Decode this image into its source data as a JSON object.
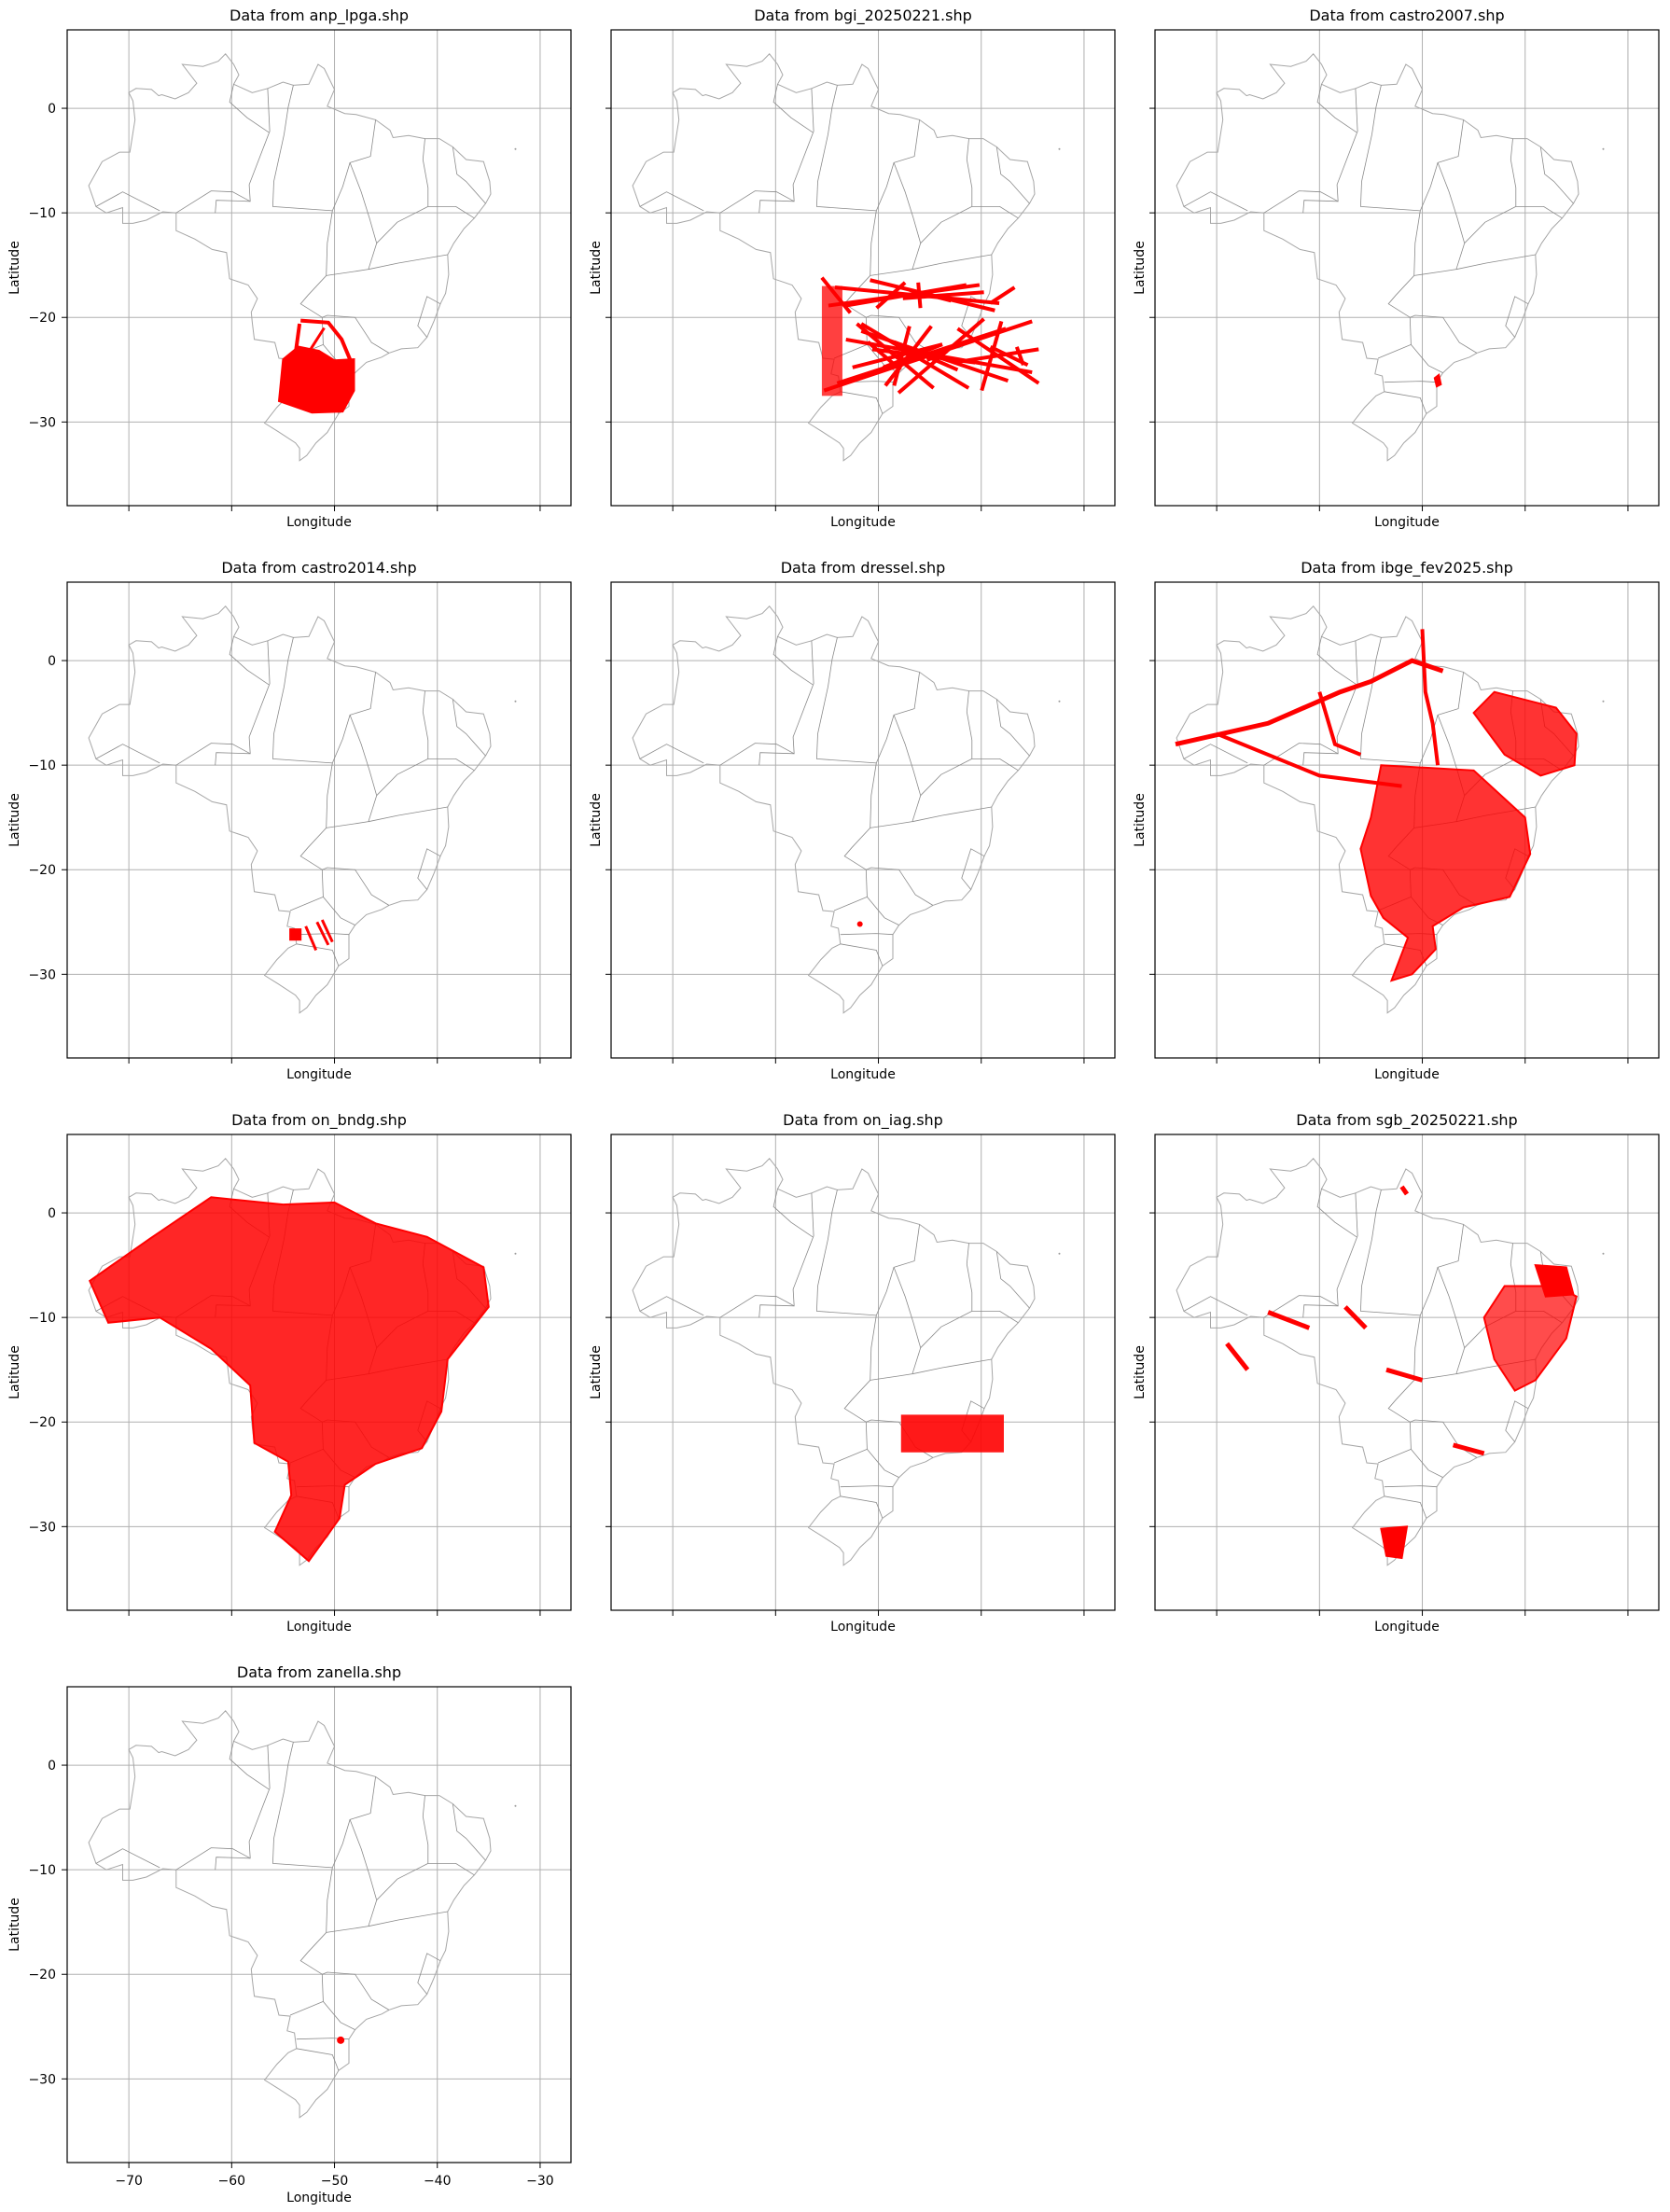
{
  "figure": {
    "xlabel": "Longitude",
    "ylabel": "Latitude",
    "xticks": [
      -70,
      -60,
      -50,
      -40,
      -30
    ],
    "yticks": [
      0,
      -10,
      -20,
      -30
    ],
    "xlim": [
      -76,
      -27
    ],
    "ylim": [
      -38,
      7.5
    ],
    "grid": true,
    "basemap_color": "#a6a6a6",
    "data_color": "#ff0000"
  },
  "panels": [
    {
      "title": "Data from anp_lpga.shp"
    },
    {
      "title": "Data from bgi_20250221.shp"
    },
    {
      "title": "Data from castro2007.shp"
    },
    {
      "title": "Data from castro2014.shp"
    },
    {
      "title": "Data from dressel.shp"
    },
    {
      "title": "Data from ibge_fev2025.shp"
    },
    {
      "title": "Data from on_bndg.shp"
    },
    {
      "title": "Data from on_iag.shp"
    },
    {
      "title": "Data from sgb_20250221.shp"
    },
    {
      "title": "Data from zanella.shp"
    }
  ]
}
